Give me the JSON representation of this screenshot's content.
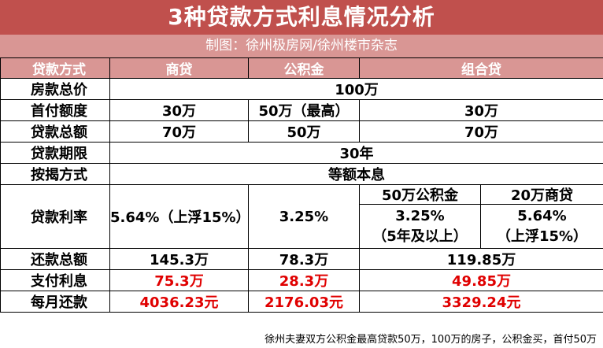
{
  "title": "3种贷款方式利息情况分析",
  "subtitle": "制图：徐州极房网/徐州楼市杂志",
  "headers": {
    "method": "贷款方式",
    "shang": "商贷",
    "gjj": "公积金",
    "zuhe": "组合贷"
  },
  "rows": {
    "price": {
      "label": "房款总价",
      "value": "100万"
    },
    "down": {
      "label": "首付额度",
      "shang": "30万",
      "gjj": "50万（最高）",
      "zuhe": "30万"
    },
    "loan": {
      "label": "贷款总额",
      "shang": "70万",
      "gjj": "50万",
      "zuhe": "70万"
    },
    "term": {
      "label": "贷款期限",
      "value": "30年"
    },
    "repay": {
      "label": "按揭方式",
      "value": "等额本息"
    },
    "rate": {
      "label": "贷款利率",
      "shang": "5.64%（上浮15%）",
      "gjj": "3.25%",
      "zuhe_gjj_head": "50万公积金",
      "zuhe_shang_head": "20万商贷",
      "zuhe_gjj_line1": "3.25%",
      "zuhe_gjj_line2": "（5年及以上）",
      "zuhe_shang_line1": "5.64%",
      "zuhe_shang_line2": "（上浮15%）"
    },
    "total": {
      "label": "还款总额",
      "shang": "145.3万",
      "gjj": "78.3万",
      "zuhe": "119.85万"
    },
    "interest": {
      "label": "支付利息",
      "shang": "75.3万",
      "gjj": "28.3万",
      "zuhe": "49.85万"
    },
    "monthly": {
      "label": "每月还款",
      "shang": "4036.23元",
      "gjj": "2176.03元",
      "zuhe": "3329.24元"
    }
  },
  "footnote": "徐州夫妻双方公积金最高贷款50万，100万的房子，公积金买，首付50万",
  "colors": {
    "title_bg": "#c0504d",
    "header_bg": "#d99694",
    "highlight_text": "#e00000"
  }
}
